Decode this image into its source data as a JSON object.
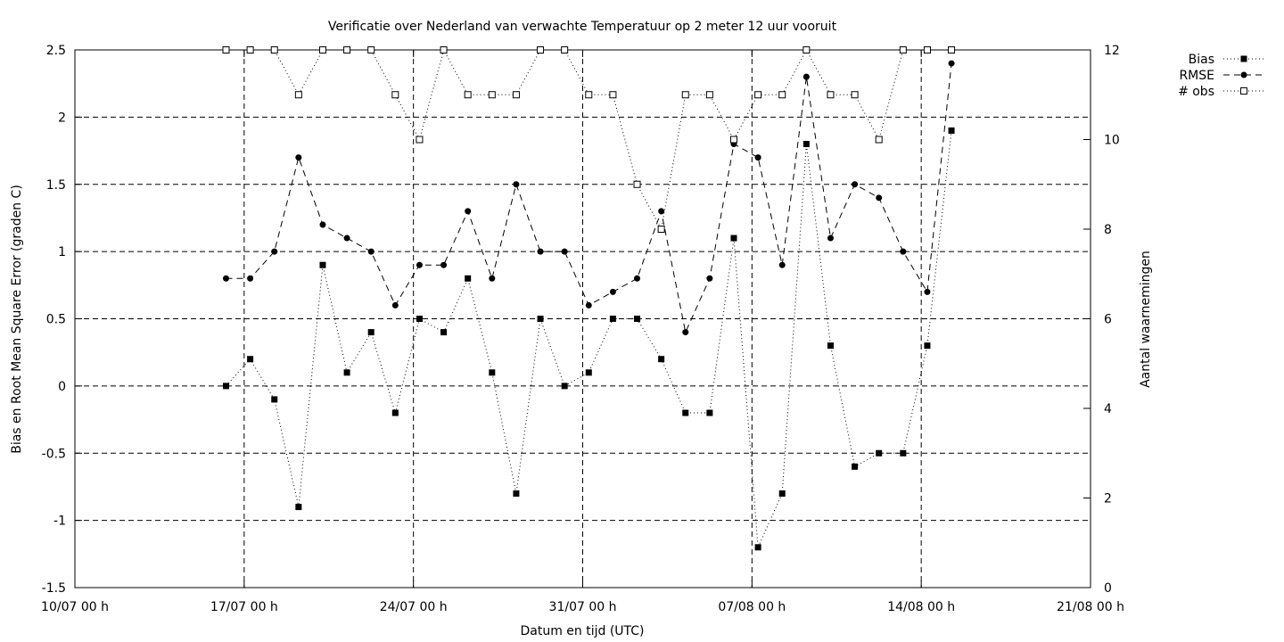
{
  "chart_data": {
    "type": "line",
    "title": "Verificatie over Nederland van verwachte Temperatuur op 2 meter 12 uur vooruit",
    "xlabel": "Datum en tijd (UTC)",
    "ylabel": "Bias en Root Mean Square Error (graden C)",
    "y2label": "Aantal waarnemingen",
    "xlim": [
      0,
      42
    ],
    "ylim": [
      -1.5,
      2.5
    ],
    "y2lim": [
      0,
      12
    ],
    "x_ticks": [
      {
        "v": 0,
        "label": "10/07 00 h"
      },
      {
        "v": 7,
        "label": "17/07 00 h"
      },
      {
        "v": 14,
        "label": "24/07 00 h"
      },
      {
        "v": 21,
        "label": "31/07 00 h"
      },
      {
        "v": 28,
        "label": "07/08 00 h"
      },
      {
        "v": 35,
        "label": "14/08 00 h"
      },
      {
        "v": 42,
        "label": "21/08 00 h"
      }
    ],
    "y_ticks": [
      {
        "v": 2.5,
        "label": "2.5"
      },
      {
        "v": 2,
        "label": "2"
      },
      {
        "v": 1.5,
        "label": "1.5"
      },
      {
        "v": 1,
        "label": "1"
      },
      {
        "v": 0.5,
        "label": "0.5"
      },
      {
        "v": 0,
        "label": "0"
      },
      {
        "v": -0.5,
        "label": "-0.5"
      },
      {
        "v": -1,
        "label": "-1"
      },
      {
        "v": -1.5,
        "label": "-1.5"
      }
    ],
    "y2_ticks": [
      {
        "v": 12,
        "label": "12"
      },
      {
        "v": 10,
        "label": "10"
      },
      {
        "v": 8,
        "label": "8"
      },
      {
        "v": 6,
        "label": "6"
      },
      {
        "v": 4,
        "label": "4"
      },
      {
        "v": 2,
        "label": "2"
      },
      {
        "v": 0,
        "label": "0"
      }
    ],
    "x": [
      6.25,
      7.25,
      8.25,
      9.25,
      10.25,
      11.25,
      12.25,
      13.25,
      14.25,
      15.25,
      16.25,
      17.25,
      18.25,
      19.25,
      20.25,
      21.25,
      22.25,
      23.25,
      24.25,
      25.25,
      26.25,
      27.25,
      28.25,
      29.25,
      30.25,
      31.25,
      32.25,
      33.25,
      34.25,
      35.25,
      36.25
    ],
    "series": [
      {
        "name": "Bias",
        "axis": "left",
        "marker": "filled-square",
        "dash": "dotted",
        "values": [
          0,
          0.2,
          -0.1,
          -0.9,
          0.9,
          0.1,
          0.4,
          -0.2,
          0.5,
          0.4,
          0.8,
          0.1,
          -0.8,
          0.5,
          0,
          0.1,
          0.5,
          0.5,
          0.2,
          -0.2,
          -0.2,
          1.1,
          -1.2,
          -0.8,
          1.8,
          0.3,
          -0.6,
          -0.5,
          -0.5,
          0.3,
          1.9
        ]
      },
      {
        "name": "RMSE",
        "axis": "left",
        "marker": "filled-circle",
        "dash": "dashed",
        "values": [
          0.8,
          0.8,
          1.0,
          1.7,
          1.2,
          1.1,
          1.0,
          0.6,
          0.9,
          0.9,
          1.3,
          0.8,
          1.5,
          1.0,
          1.0,
          0.6,
          0.7,
          0.8,
          1.3,
          0.4,
          0.8,
          1.8,
          1.7,
          0.9,
          2.3,
          1.1,
          1.5,
          1.4,
          1.0,
          0.7,
          2.4
        ]
      },
      {
        "name": "# obs",
        "axis": "right",
        "marker": "open-square",
        "dash": "dotted",
        "values": [
          12,
          12,
          12,
          11,
          12,
          12,
          12,
          11,
          10,
          12,
          11,
          11,
          11,
          12,
          12,
          11,
          11,
          9,
          8,
          11,
          11,
          10,
          11,
          11,
          12,
          11,
          11,
          10,
          12,
          12,
          12
        ]
      }
    ],
    "grid": true,
    "legend": "top-right-outside"
  }
}
